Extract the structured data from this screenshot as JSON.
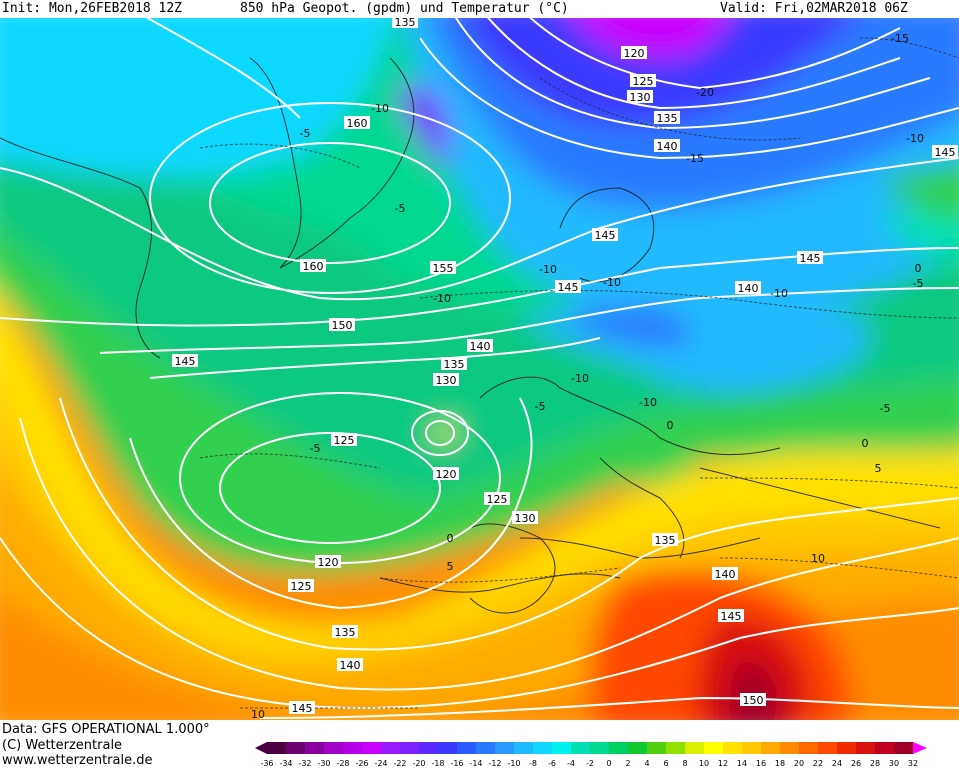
{
  "header": {
    "init": "Init: Mon,26FEB2018 12Z",
    "title": "850 hPa Geopot. (gpdm) und Temperatur (°C)",
    "valid": "Valid: Fri,02MAR2018 06Z"
  },
  "footer": {
    "data_line": "Data: GFS OPERATIONAL 1.000°",
    "copyright_line": "(C) Wetterzentrale",
    "url_line": "www.wetterzentrale.de"
  },
  "legend": {
    "ticks": [
      "-36",
      "-34",
      "-32",
      "-30",
      "-28",
      "-26",
      "-24",
      "-22",
      "-20",
      "-18",
      "-16",
      "-14",
      "-12",
      "-10",
      "-8",
      "-6",
      "-4",
      "-2",
      "0",
      "2",
      "4",
      "6",
      "8",
      "10",
      "12",
      "14",
      "16",
      "18",
      "20",
      "22",
      "24",
      "26",
      "28",
      "30",
      "32"
    ],
    "colors": [
      "#4a0040",
      "#6a0070",
      "#8a00a0",
      "#a000c8",
      "#b400e6",
      "#c800ff",
      "#9a1aff",
      "#7a22ff",
      "#5a2aff",
      "#3a3aff",
      "#2a5aff",
      "#2a7aff",
      "#2a9aff",
      "#20baff",
      "#10d8ff",
      "#00f0f0",
      "#00e0b0",
      "#00d890",
      "#00d060",
      "#10c830",
      "#50d010",
      "#90e000",
      "#d8f000",
      "#ffff00",
      "#ffe000",
      "#ffc800",
      "#ffaa00",
      "#ff8c00",
      "#ff6a00",
      "#ff4a00",
      "#f02a00",
      "#d81010",
      "#c00020",
      "#a00028",
      "#ff00ff"
    ]
  },
  "contour_labels": {
    "geopotential": [
      "135",
      "120",
      "125",
      "130",
      "135",
      "140",
      "145",
      "160",
      "160",
      "155",
      "150",
      "145",
      "145",
      "140",
      "145",
      "145",
      "140",
      "135",
      "130",
      "125",
      "120",
      "125",
      "130",
      "135",
      "140",
      "145",
      "150",
      "120",
      "125",
      "135",
      "140",
      "145"
    ],
    "temperature": [
      "-15",
      "-20",
      "-15",
      "-10",
      "-5",
      "-10",
      "-5",
      "-10",
      "-10",
      "-10",
      "-10",
      "-5",
      "0",
      "-5",
      "0",
      "5",
      "-5",
      "5",
      "0",
      "-5",
      "10",
      "10",
      "-10",
      "-10",
      "0"
    ]
  }
}
